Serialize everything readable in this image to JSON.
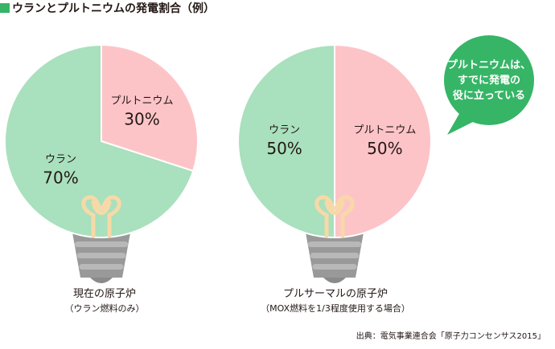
{
  "title": "ウランとプルトニウムの発電割合（例）",
  "colors": {
    "uranium": "#a9e0bd",
    "plutonium": "#fdc4c8",
    "accent": "#36b567",
    "outline": "#ffffff",
    "filament": "#f7d9a8",
    "base": "#999999"
  },
  "chart_data": [
    {
      "type": "pie",
      "caption": "現在の原子炉",
      "caption_sub": "（ウラン燃料のみ）",
      "slices": [
        {
          "label": "プルトニウム",
          "value": 30,
          "value_text": "30%"
        },
        {
          "label": "ウラン",
          "value": 70,
          "value_text": "70%"
        }
      ]
    },
    {
      "type": "pie",
      "caption": "プルサーマルの原子炉",
      "caption_sub": "（MOX燃料を1/3程度使用する場合）",
      "slices": [
        {
          "label": "プルトニウム",
          "value": 50,
          "value_text": "50%"
        },
        {
          "label": "ウラン",
          "value": 50,
          "value_text": "50%"
        }
      ]
    }
  ],
  "bubble": {
    "lines": [
      "プルトニウムは、",
      "すでに発電の",
      "役に立っている"
    ]
  },
  "source": "出典：電気事業連合会「原子力コンセンサス2015」"
}
